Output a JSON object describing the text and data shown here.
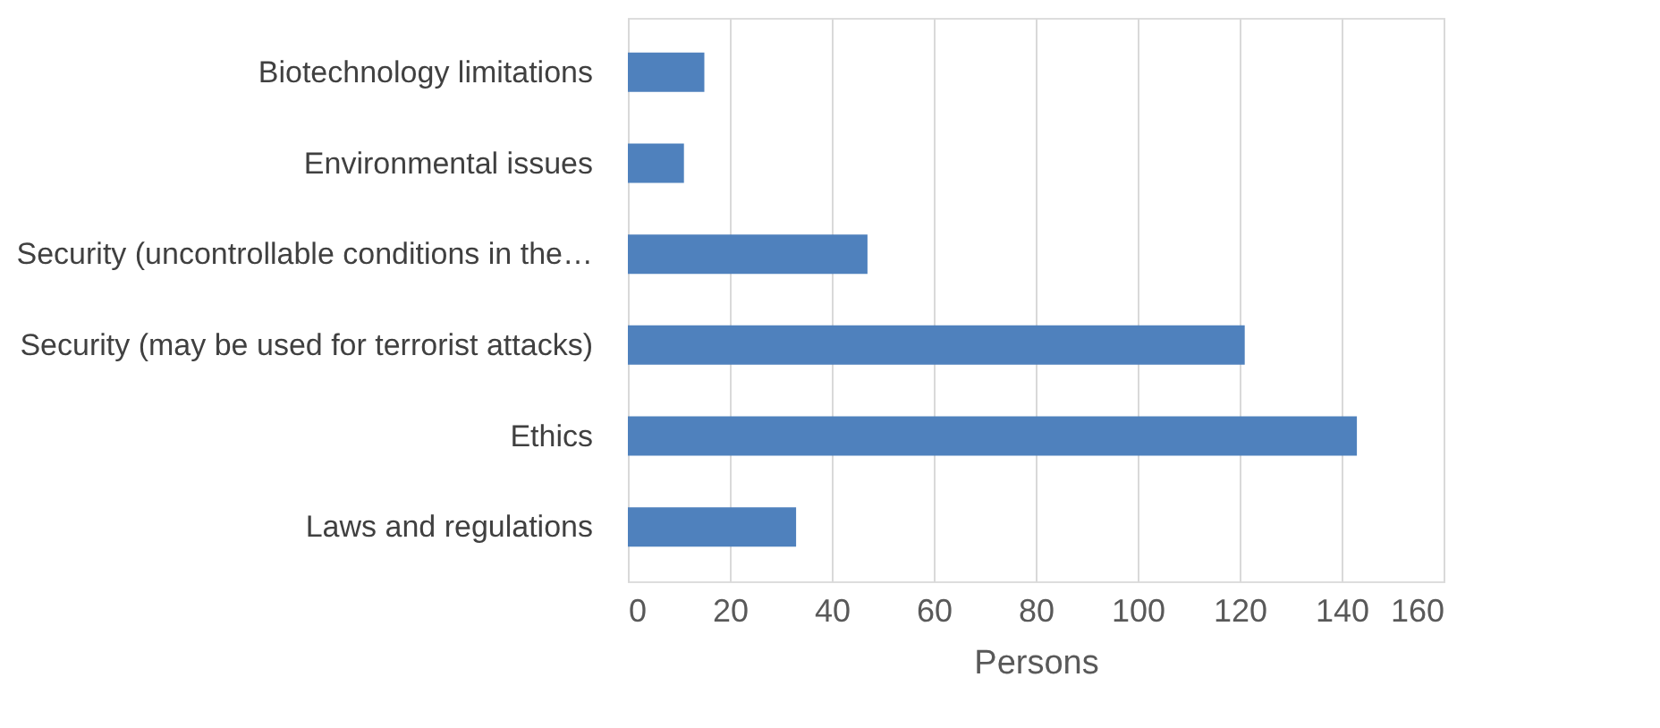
{
  "chart_data": {
    "type": "bar",
    "orientation": "horizontal",
    "xlabel": "Persons",
    "categories": [
      "Biotechnology limitations",
      "Environmental issues",
      "Security (uncontrollable conditions in the…",
      "Security (may be used for terrorist attacks)",
      "Ethics",
      "Laws and regulations"
    ],
    "values": [
      15,
      11,
      47,
      121,
      143,
      33
    ],
    "color": "#4f81bd",
    "xlim": [
      0,
      160
    ],
    "xticks": [
      0,
      20,
      40,
      60,
      80,
      100,
      120,
      140,
      160
    ],
    "grid": "x"
  }
}
